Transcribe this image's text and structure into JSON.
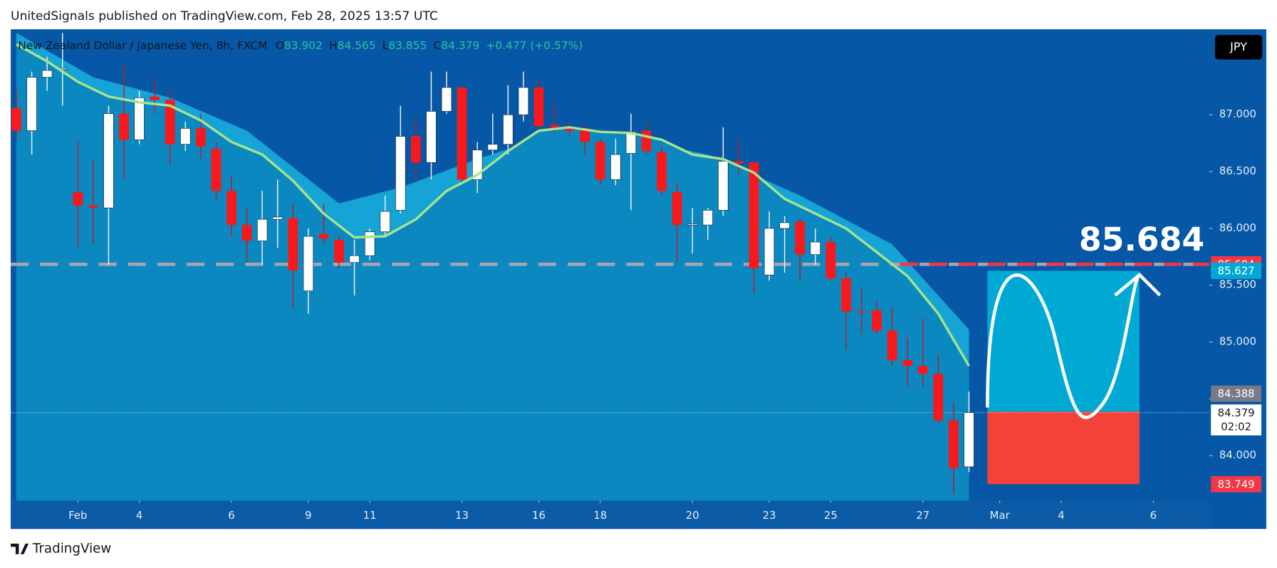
{
  "header": {
    "publisher": "UnitedSignals published on TradingView.com, Feb 28, 2025 13:57 UTC",
    "logo": "TradingView"
  },
  "chart_data": {
    "type": "candlestick",
    "title": "New Zealand Dollar / Japanese Yen, 8h, FXCM",
    "ohlc_keys": [
      "O",
      "H",
      "L",
      "C"
    ],
    "change": "+0.477 (+0.57%)",
    "currency": "JPY",
    "open": [
      87.06,
      86.86,
      87.33,
      87.4,
      86.32,
      86.2,
      86.18,
      87.01,
      86.78,
      87.16,
      87.13,
      86.74,
      86.88,
      86.7,
      86.33,
      86.03,
      85.89,
      86.08,
      86.09,
      85.45,
      85.95,
      85.9,
      85.7,
      85.76,
      85.97,
      86.16,
      86.81,
      86.58,
      87.03,
      87.24,
      86.43,
      86.69,
      86.74,
      87.0,
      87.24,
      86.91,
      86.89,
      86.88,
      86.76,
      86.43,
      86.66,
      86.86,
      86.67,
      86.32,
      86.03,
      86.03,
      86.16,
      86.59,
      86.58,
      85.59,
      86.0,
      86.06,
      85.77,
      85.88,
      85.56,
      85.27,
      85.28,
      85.1,
      84.84,
      84.79,
      84.72,
      84.31,
      83.902
    ],
    "high": [
      87.22,
      87.38,
      87.51,
      87.72,
      86.76,
      86.61,
      87.08,
      87.44,
      87.21,
      87.33,
      87.22,
      86.94,
      87.01,
      86.76,
      86.47,
      86.18,
      86.33,
      86.43,
      86.22,
      86.0,
      86.22,
      85.93,
      85.9,
      86.0,
      86.29,
      87.08,
      86.97,
      87.38,
      87.38,
      87.24,
      86.76,
      87.01,
      87.26,
      87.38,
      87.31,
      87.11,
      86.94,
      86.91,
      86.79,
      86.79,
      87.01,
      86.94,
      86.72,
      86.4,
      86.18,
      86.18,
      86.89,
      86.79,
      86.59,
      86.15,
      86.11,
      86.09,
      86.0,
      85.93,
      85.61,
      85.47,
      85.36,
      85.3,
      85.04,
      85.21,
      84.89,
      84.47,
      84.565
    ],
    "low": [
      86.79,
      86.65,
      87.21,
      87.08,
      85.83,
      85.86,
      85.68,
      86.43,
      86.74,
      87.01,
      86.56,
      86.68,
      86.61,
      86.26,
      85.93,
      85.7,
      85.68,
      85.83,
      85.29,
      85.25,
      85.86,
      85.65,
      85.41,
      85.72,
      85.93,
      86.13,
      86.43,
      86.43,
      87.01,
      86.4,
      86.31,
      86.65,
      86.65,
      86.94,
      86.85,
      86.83,
      86.81,
      86.65,
      86.38,
      86.38,
      86.16,
      86.65,
      86.29,
      85.7,
      85.78,
      85.9,
      86.11,
      86.47,
      85.43,
      85.54,
      85.61,
      85.54,
      85.68,
      85.54,
      84.93,
      85.07,
      85.07,
      84.79,
      84.61,
      84.61,
      84.29,
      83.66,
      83.855
    ],
    "close": [
      86.86,
      87.33,
      87.39,
      87.41,
      86.2,
      86.18,
      87.01,
      86.78,
      87.15,
      87.13,
      86.74,
      86.88,
      86.72,
      86.33,
      86.03,
      85.89,
      86.08,
      86.1,
      85.63,
      85.93,
      85.91,
      85.7,
      85.76,
      85.97,
      86.15,
      86.81,
      86.58,
      87.03,
      87.24,
      86.43,
      86.69,
      86.74,
      87.0,
      87.24,
      86.9,
      86.89,
      86.86,
      86.76,
      86.43,
      86.65,
      86.85,
      86.68,
      86.33,
      86.03,
      86.04,
      86.16,
      86.59,
      86.57,
      85.65,
      86.0,
      86.05,
      85.77,
      85.88,
      85.56,
      85.27,
      85.26,
      85.1,
      84.84,
      84.79,
      84.72,
      84.31,
      83.89,
      84.379
    ],
    "up_color": "#ffffff",
    "down_color": "#f7191c",
    "ma": {
      "color": "#a8e38c",
      "x": [
        0,
        2,
        4,
        6,
        8,
        10,
        12,
        14,
        16,
        18,
        20,
        22,
        24,
        26,
        28,
        30,
        32,
        34,
        36,
        38,
        40,
        42,
        44,
        46,
        48,
        50,
        52,
        54,
        56,
        58,
        60,
        62
      ],
      "values": [
        87.62,
        87.47,
        87.29,
        87.16,
        87.11,
        87.08,
        86.95,
        86.76,
        86.65,
        86.42,
        86.13,
        85.92,
        85.93,
        86.08,
        86.33,
        86.47,
        86.68,
        86.86,
        86.89,
        86.85,
        86.84,
        86.78,
        86.65,
        86.61,
        86.49,
        86.26,
        86.13,
        86.0,
        85.79,
        85.58,
        85.25,
        84.79
      ]
    },
    "band_upper": {
      "color": "#16a3d6",
      "x": [
        0,
        5,
        10,
        15,
        21,
        25,
        30,
        35,
        40,
        45,
        51,
        57,
        62
      ],
      "values": [
        87.72,
        87.33,
        87.15,
        86.86,
        86.22,
        86.36,
        86.61,
        86.83,
        86.79,
        86.65,
        86.29,
        85.86,
        85.11
      ]
    },
    "xlim": [
      -0.37,
      77.64
    ],
    "ylim": [
      83.606,
      87.752
    ],
    "yticks": [
      {
        "value": 84,
        "label": "84.000"
      },
      {
        "value": 84.5,
        "label": "84.500"
      },
      {
        "value": 85,
        "label": "85.000"
      },
      {
        "value": 85.5,
        "label": "85.500"
      },
      {
        "value": 86,
        "label": "86.000"
      },
      {
        "value": 86.5,
        "label": "86.500"
      },
      {
        "value": 87,
        "label": "87.000"
      }
    ],
    "xticks": [
      {
        "value": 4,
        "label": "Feb"
      },
      {
        "value": 8,
        "label": "4"
      },
      {
        "value": 14,
        "label": "6"
      },
      {
        "value": 19,
        "label": "9"
      },
      {
        "value": 23,
        "label": "11"
      },
      {
        "value": 29,
        "label": "13"
      },
      {
        "value": 34,
        "label": "16"
      },
      {
        "value": 38,
        "label": "18"
      },
      {
        "value": 44,
        "label": "20"
      },
      {
        "value": 49,
        "label": "23"
      },
      {
        "value": 53,
        "label": "25"
      },
      {
        "value": 59,
        "label": "27"
      },
      {
        "value": 64,
        "label": "Mar"
      },
      {
        "value": 68,
        "label": "4"
      },
      {
        "value": 74,
        "label": "6"
      }
    ],
    "level": 85.684,
    "position": {
      "x": [
        63.2,
        73.1
      ],
      "target": 85.627,
      "entry": 84.388,
      "stop": 83.749
    },
    "last": {
      "value": 84.379,
      "countdown": "02:02"
    }
  }
}
